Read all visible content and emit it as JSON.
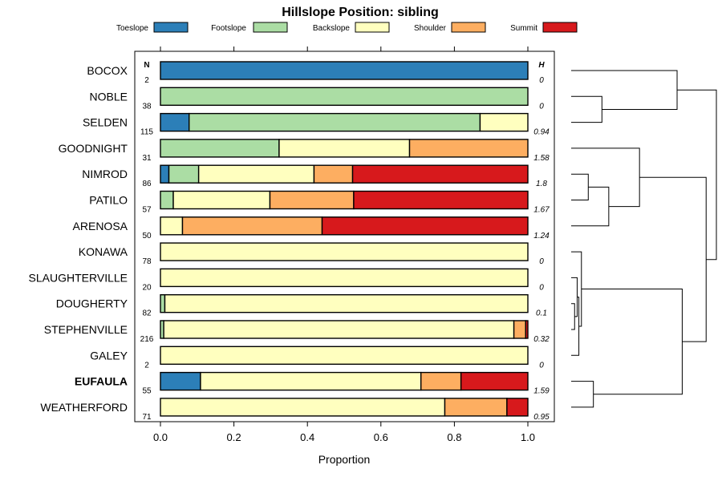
{
  "chart_data": {
    "type": "bar",
    "orientation": "horizontal",
    "stacked": true,
    "title": "Hillslope Position: sibling",
    "xlabel": "Proportion",
    "xlim": [
      0,
      1
    ],
    "x_ticks": [
      0.0,
      0.2,
      0.4,
      0.6,
      0.8,
      1.0
    ],
    "x_tick_labels": [
      "0.0",
      "0.2",
      "0.4",
      "0.6",
      "0.8",
      "1.0"
    ],
    "n_header": "N",
    "h_header": "H",
    "legend_position": "top",
    "categories": [
      "BOCOX",
      "NOBLE",
      "SELDEN",
      "GOODNIGHT",
      "NIMROD",
      "PATILO",
      "ARENOSA",
      "KONAWA",
      "SLAUGHTERVILLE",
      "DOUGHERTY",
      "STEPHENVILLE",
      "GALEY",
      "EUFAULA",
      "WEATHERFORD"
    ],
    "highlight": "EUFAULA",
    "n": [
      "2",
      "38",
      "115",
      "31",
      "86",
      "57",
      "50",
      "78",
      "20",
      "82",
      "216",
      "2",
      "55",
      "71"
    ],
    "h": [
      "0",
      "0",
      "0.94",
      "1.58",
      "1.8",
      "1.67",
      "1.24",
      "0",
      "0",
      "0.1",
      "0.32",
      "0",
      "1.59",
      "0.95"
    ],
    "series": [
      {
        "name": "Toeslope",
        "color": "#2c7fb8",
        "values": [
          1.0,
          0,
          0.078,
          0,
          0.023,
          0,
          0,
          0,
          0,
          0,
          0,
          0,
          0.109,
          0
        ]
      },
      {
        "name": "Footslope",
        "color": "#abdda4",
        "values": [
          0,
          1.0,
          0.792,
          0.323,
          0.081,
          0.035,
          0,
          0,
          0,
          0.012,
          0.009,
          0,
          0,
          0
        ]
      },
      {
        "name": "Backslope",
        "color": "#ffffbf",
        "values": [
          0,
          0,
          0.13,
          0.355,
          0.314,
          0.263,
          0.06,
          1.0,
          1.0,
          0.988,
          0.953,
          1.0,
          0.6,
          0.774
        ]
      },
      {
        "name": "Shoulder",
        "color": "#fdae61",
        "values": [
          0,
          0,
          0,
          0.322,
          0.105,
          0.228,
          0.38,
          0,
          0,
          0,
          0.032,
          0,
          0.109,
          0.169
        ]
      },
      {
        "name": "Summit",
        "color": "#d7191c",
        "values": [
          0,
          0,
          0,
          0,
          0.477,
          0.474,
          0.56,
          0,
          0,
          0,
          0.006,
          0,
          0.182,
          0.057
        ]
      }
    ],
    "dendrogram": {
      "leaves_order": [
        "BOCOX",
        "NOBLE",
        "SELDEN",
        "GOODNIGHT",
        "NIMROD",
        "PATILO",
        "ARENOSA",
        "KONAWA",
        "SLAUGHTERVILLE",
        "DOUGHERTY",
        "STEPHENVILLE",
        "GALEY",
        "EUFAULA",
        "WEATHERFORD"
      ],
      "merges": [
        {
          "a": "leaf:NOBLE",
          "b": "leaf:SELDEN",
          "height": 0.18
        },
        {
          "a": "leaf:BOCOX",
          "b": "m0",
          "height": 0.62
        },
        {
          "a": "leaf:NIMROD",
          "b": "leaf:PATILO",
          "height": 0.1
        },
        {
          "a": "m2",
          "b": "leaf:ARENOSA",
          "height": 0.22
        },
        {
          "a": "leaf:GOODNIGHT",
          "b": "m3",
          "height": 0.4
        },
        {
          "a": "leaf:DOUGHERTY",
          "b": "leaf:STEPHENVILLE",
          "height": 0.02
        },
        {
          "a": "leaf:SLAUGHTERVILLE",
          "b": "m5",
          "height": 0.035
        },
        {
          "a": "m6",
          "b": "leaf:GALEY",
          "height": 0.045
        },
        {
          "a": "leaf:KONAWA",
          "b": "m7",
          "height": 0.06
        },
        {
          "a": "leaf:EUFAULA",
          "b": "leaf:WEATHERFORD",
          "height": 0.13
        },
        {
          "a": "m8",
          "b": "m9",
          "height": 0.65
        },
        {
          "a": "m4",
          "b": "m10",
          "height": 0.79
        },
        {
          "a": "m1",
          "b": "m11",
          "height": 0.85
        }
      ]
    }
  }
}
